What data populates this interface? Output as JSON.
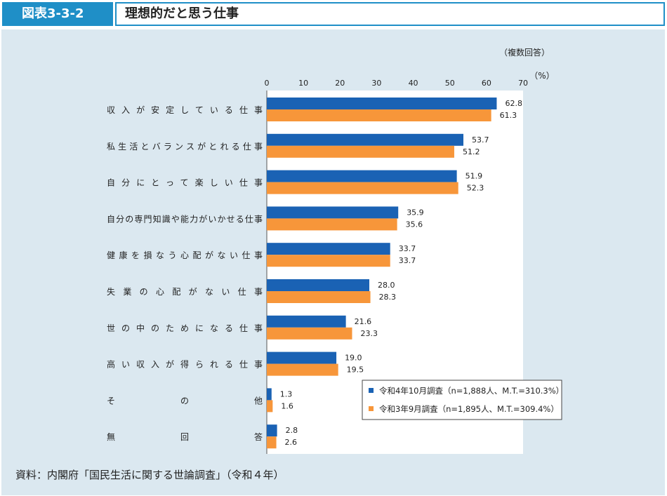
{
  "header": {
    "figure_label": "図表3-3-2",
    "figure_title": "理想的だと思う仕事"
  },
  "notes": {
    "multiple_answers": "（複数回答）",
    "unit": "（%）"
  },
  "source": "資料：内閣府「国民生活に関する世論調査」（令和４年）",
  "chart_data": {
    "type": "bar",
    "orientation": "horizontal",
    "categories": [
      "収入が安定している仕事",
      "私生活とバランスがとれる仕事",
      "自分にとって楽しい仕事",
      "自分の専門知識や能力がいかせる仕事",
      "健康を損なう心配がない仕事",
      "失業の心配がない仕事",
      "世の中のためになる仕事",
      "高い収入が得られる仕事",
      "その他",
      "無回答"
    ],
    "series": [
      {
        "name": "令和4年10月調査（n=1,888人、M.T.=310.3%）",
        "color": "#1a62b4",
        "values": [
          62.8,
          53.7,
          51.9,
          35.9,
          33.7,
          28.0,
          21.6,
          19.0,
          1.3,
          2.8
        ]
      },
      {
        "name": "令和3年9月調査（n=1,895人、M.T.=309.4%）",
        "color": "#f7963a",
        "values": [
          61.3,
          51.2,
          52.3,
          35.6,
          33.7,
          28.3,
          23.3,
          19.5,
          1.6,
          2.6
        ]
      }
    ],
    "xlim": [
      0,
      70
    ],
    "xticks": [
      0,
      10,
      20,
      30,
      40,
      50,
      60,
      70
    ],
    "legend_position": "bottom-right",
    "grid": false
  }
}
